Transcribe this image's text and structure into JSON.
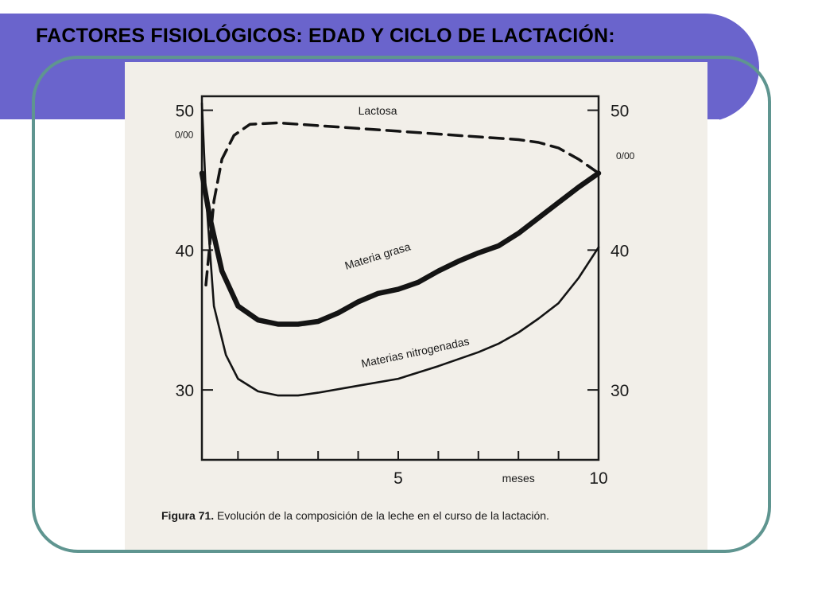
{
  "slide": {
    "title": "FACTORES FISIOLÓGICOS: EDAD Y CICLO DE LACTACIÓN:",
    "colors": {
      "header": "#6a64cc",
      "frame": "#5f9590",
      "figure_bg": "#f2efe9"
    }
  },
  "figure": {
    "caption_label": "Figura 71.",
    "caption_text": "Evolución de la composición de la leche en el curso de la lactación."
  },
  "chart_data": {
    "type": "line",
    "xlabel": "meses",
    "x_ticks": [
      1,
      2,
      3,
      4,
      5,
      6,
      7,
      8,
      9,
      10
    ],
    "x_tick_labels": [
      {
        "x": 5,
        "label": "5"
      },
      {
        "x": 10,
        "label": "10"
      }
    ],
    "xlim": [
      0.1,
      10
    ],
    "ylim": [
      25,
      51
    ],
    "y_tick_labels": [
      {
        "y": 30,
        "label": "30"
      },
      {
        "y": 40,
        "label": "40"
      },
      {
        "y": 50,
        "label": "50"
      }
    ],
    "y_unit_left": "0/00",
    "y_unit_right": "0/00",
    "series": [
      {
        "name": "Lactosa",
        "style": "dashed",
        "x": [
          0.2,
          0.4,
          0.6,
          0.9,
          1.3,
          2,
          3,
          4,
          5,
          6,
          7,
          8,
          8.5,
          9,
          9.5,
          10
        ],
        "y": [
          37.5,
          43.5,
          46.5,
          48.2,
          49,
          49.1,
          48.9,
          48.7,
          48.5,
          48.3,
          48.1,
          47.9,
          47.7,
          47.3,
          46.5,
          45.5
        ]
      },
      {
        "name": "Materia grasa",
        "style": "thick",
        "x": [
          0.1,
          0.3,
          0.6,
          1,
          1.5,
          2,
          2.5,
          3,
          3.5,
          4,
          4.5,
          5,
          5.5,
          6,
          6.5,
          7,
          7.5,
          8,
          8.5,
          9,
          9.5,
          10
        ],
        "y": [
          45.5,
          42.3,
          38.5,
          36,
          35,
          34.7,
          34.7,
          34.9,
          35.5,
          36.3,
          36.9,
          37.2,
          37.7,
          38.5,
          39.2,
          39.8,
          40.3,
          41.2,
          42.3,
          43.4,
          44.5,
          45.5
        ],
        "label_angle": -17
      },
      {
        "name": "Materias nitrogenadas",
        "style": "thin",
        "x": [
          0.1,
          0.2,
          0.4,
          0.7,
          1,
          1.5,
          2,
          2.5,
          3,
          4,
          5,
          6,
          7,
          7.5,
          8,
          8.5,
          9,
          9.5,
          10
        ],
        "y": [
          50.5,
          44,
          36,
          32.5,
          30.8,
          29.9,
          29.6,
          29.6,
          29.8,
          30.3,
          30.8,
          31.7,
          32.7,
          33.3,
          34.1,
          35.1,
          36.2,
          38,
          40.2
        ],
        "label_angle": -12
      }
    ]
  }
}
